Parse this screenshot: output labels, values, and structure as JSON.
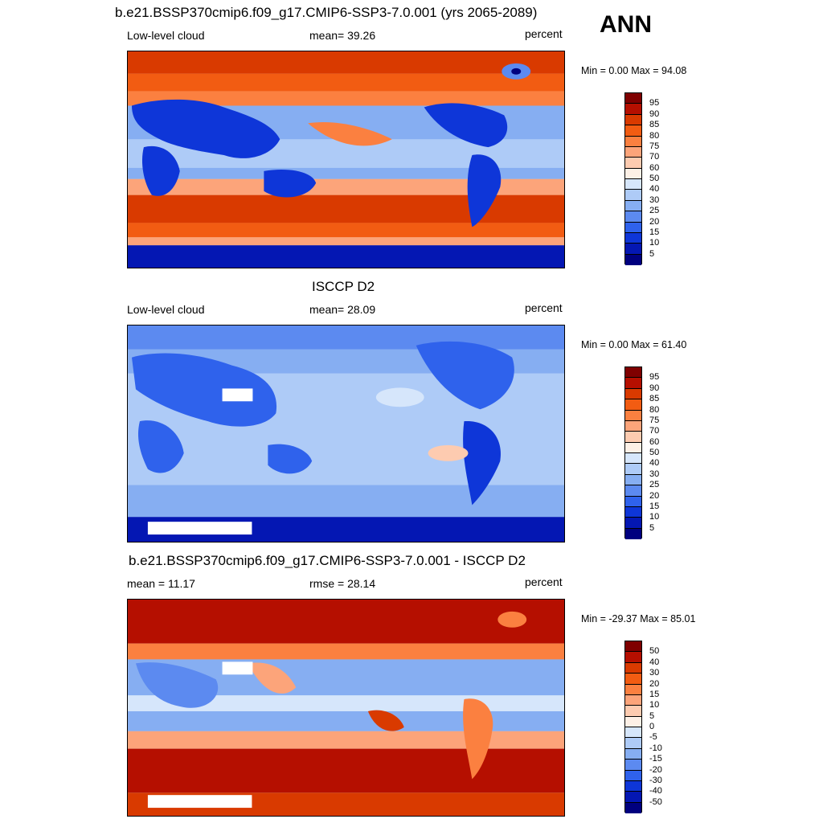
{
  "header": {
    "case_title": "b.e21.BSSP370cmip6.f09_g17.CMIP6-SSP3-7.0.001 (yrs 2065-2089)",
    "season": "ANN"
  },
  "panels": [
    {
      "title": "",
      "left_label": "Low-level cloud",
      "center_label": "mean=  39.26",
      "right_label": "percent",
      "minmax": "Min =   0.00 Max =  94.08",
      "field_type": "model",
      "colorbar_labels": [
        "95",
        "90",
        "85",
        "80",
        "75",
        "70",
        "60",
        "50",
        "40",
        "30",
        "25",
        "20",
        "15",
        "10",
        "5"
      ]
    },
    {
      "title": "ISCCP D2",
      "left_label": "Low-level cloud",
      "center_label": "mean=  28.09",
      "right_label": "percent",
      "minmax": "Min =   0.00 Max =  61.40",
      "field_type": "obs",
      "colorbar_labels": [
        "95",
        "90",
        "85",
        "80",
        "75",
        "70",
        "60",
        "50",
        "40",
        "30",
        "25",
        "20",
        "15",
        "10",
        "5"
      ]
    },
    {
      "title": "b.e21.BSSP370cmip6.f09_g17.CMIP6-SSP3-7.0.001 - ISCCP D2",
      "left_label": "mean =  11.17",
      "center_label": "rmse =  28.14",
      "right_label": "percent",
      "minmax": "Min = -29.37 Max =  85.01",
      "field_type": "diff",
      "colorbar_labels": [
        "50",
        "40",
        "30",
        "20",
        "15",
        "10",
        "5",
        "0",
        "-5",
        "-10",
        "-15",
        "-20",
        "-30",
        "-40",
        "-50"
      ]
    }
  ],
  "colors": {
    "scale": [
      "#7f0000",
      "#b50f00",
      "#d93a00",
      "#f25c12",
      "#fb8040",
      "#fca47a",
      "#fdcbb0",
      "#fdf0e6",
      "#d6e6fb",
      "#aecbf7",
      "#86aef2",
      "#5c8af0",
      "#2f62ec",
      "#0e36d8",
      "#0417b3",
      "#00007f"
    ]
  }
}
